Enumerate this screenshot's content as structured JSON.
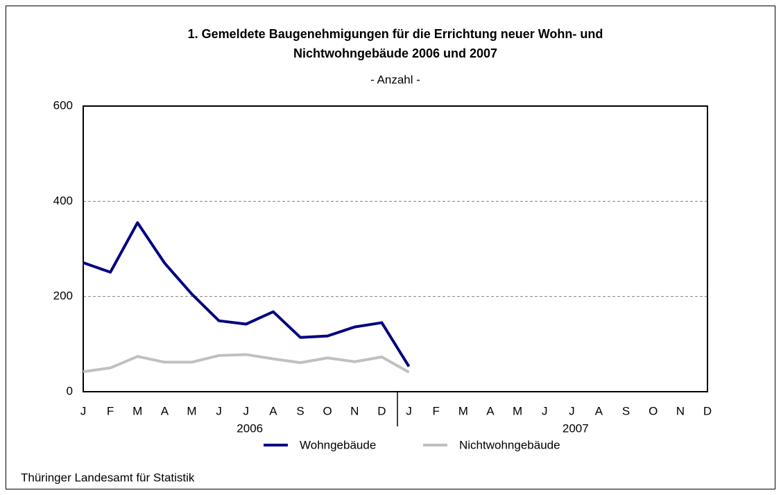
{
  "chart_data": {
    "type": "line",
    "title": [
      "1. Gemeldete Baugenehmigungen für die Errichtung neuer Wohn- und",
      "Nichtwohngebäude 2006 und 2007"
    ],
    "subtitle": "- Anzahl -",
    "categories": [
      "J",
      "F",
      "M",
      "A",
      "M",
      "J",
      "J",
      "A",
      "S",
      "O",
      "N",
      "D",
      "J",
      "F",
      "M",
      "A",
      "M",
      "J",
      "J",
      "A",
      "S",
      "O",
      "N",
      "D"
    ],
    "years": [
      "2006",
      "2007"
    ],
    "series": [
      {
        "name": "Wohngebäude",
        "color": "#000080",
        "values": [
          271,
          251,
          355,
          270,
          205,
          149,
          142,
          168,
          114,
          117,
          136,
          145,
          53,
          null,
          null,
          null,
          null,
          null,
          null,
          null,
          null,
          null,
          null,
          null
        ]
      },
      {
        "name": "Nichtwohngebäude",
        "color": "#c0c0c0",
        "values": [
          42,
          50,
          74,
          62,
          62,
          76,
          78,
          69,
          61,
          71,
          63,
          73,
          41,
          null,
          null,
          null,
          null,
          null,
          null,
          null,
          null,
          null,
          null,
          null
        ]
      }
    ],
    "ylim": [
      0,
      600
    ],
    "yticks": [
      0,
      200,
      400,
      600
    ],
    "grid": true,
    "source": "Thüringer Landesamt für Statistik"
  }
}
